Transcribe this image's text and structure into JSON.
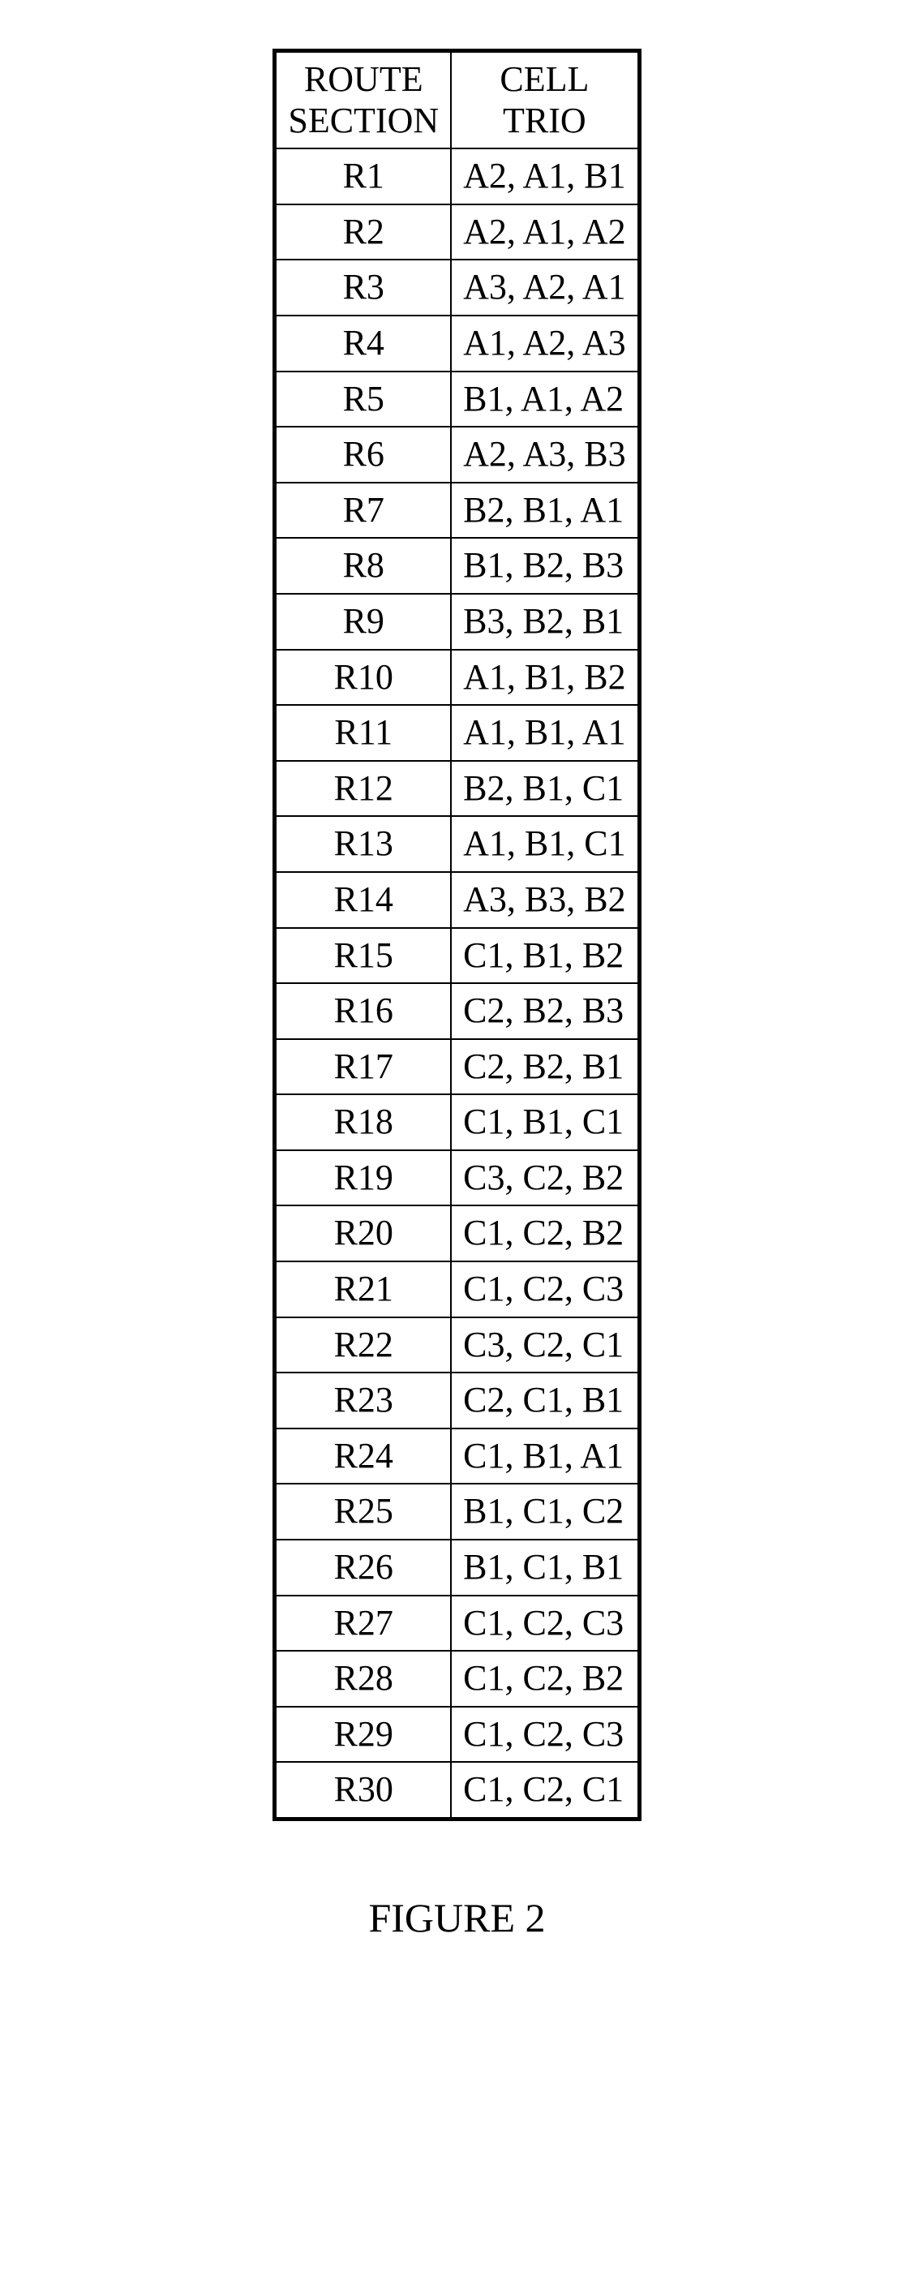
{
  "table": {
    "headers": {
      "route_line1": "ROUTE",
      "route_line2": "SECTION",
      "cell_line1": "CELL",
      "cell_line2": "TRIO"
    },
    "rows": [
      {
        "route": "R1",
        "cell": "A2, A1, B1"
      },
      {
        "route": "R2",
        "cell": "A2, A1, A2"
      },
      {
        "route": "R3",
        "cell": "A3, A2, A1"
      },
      {
        "route": "R4",
        "cell": "A1, A2, A3"
      },
      {
        "route": "R5",
        "cell": "B1, A1, A2"
      },
      {
        "route": "R6",
        "cell": "A2, A3, B3"
      },
      {
        "route": "R7",
        "cell": "B2, B1, A1"
      },
      {
        "route": "R8",
        "cell": "B1, B2, B3"
      },
      {
        "route": "R9",
        "cell": "B3, B2, B1"
      },
      {
        "route": "R10",
        "cell": "A1, B1, B2"
      },
      {
        "route": "R11",
        "cell": "A1, B1, A1"
      },
      {
        "route": "R12",
        "cell": "B2, B1, C1"
      },
      {
        "route": "R13",
        "cell": "A1, B1, C1"
      },
      {
        "route": "R14",
        "cell": "A3, B3, B2"
      },
      {
        "route": "R15",
        "cell": "C1, B1, B2"
      },
      {
        "route": "R16",
        "cell": "C2, B2, B3"
      },
      {
        "route": "R17",
        "cell": "C2, B2, B1"
      },
      {
        "route": "R18",
        "cell": "C1, B1, C1"
      },
      {
        "route": "R19",
        "cell": "C3, C2, B2"
      },
      {
        "route": "R20",
        "cell": "C1, C2, B2"
      },
      {
        "route": "R21",
        "cell": "C1, C2, C3"
      },
      {
        "route": "R22",
        "cell": "C3, C2, C1"
      },
      {
        "route": "R23",
        "cell": "C2, C1, B1"
      },
      {
        "route": "R24",
        "cell": "C1, B1, A1"
      },
      {
        "route": "R25",
        "cell": "B1, C1, C2"
      },
      {
        "route": "R26",
        "cell": "B1, C1, B1"
      },
      {
        "route": "R27",
        "cell": "C1, C2, C3"
      },
      {
        "route": "R28",
        "cell": "C1, C2, B2"
      },
      {
        "route": "R29",
        "cell": "C1, C2, C3"
      },
      {
        "route": "R30",
        "cell": "C1, C2, C1"
      }
    ]
  },
  "caption": "FIGURE 2"
}
